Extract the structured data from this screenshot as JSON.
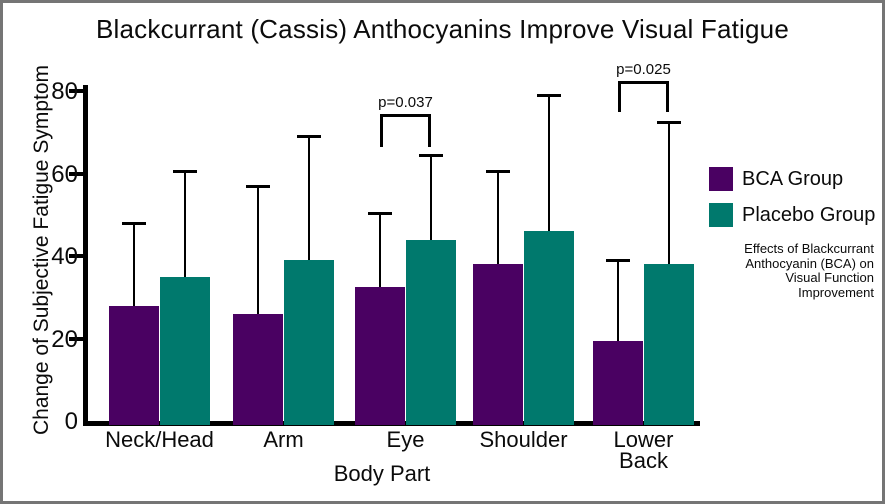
{
  "title": "Blackcurrant (Cassis) Anthocyanins Improve Visual Fatigue",
  "chart_data": {
    "type": "bar",
    "title": "Blackcurrant (Cassis) Anthocyanins Improve Visual Fatigue",
    "xlabel": "Body Part",
    "ylabel": "Change of Subjective Fatigue Symptom",
    "ylim": [
      0,
      80
    ],
    "yticks": [
      0,
      20,
      40,
      60,
      80
    ],
    "grid": false,
    "legend_position": "right-outside",
    "error_bars": "upper",
    "categories": [
      "Neck/Head",
      "Arm",
      "Eye",
      "Shoulder",
      "Lower Back"
    ],
    "category_display": [
      "Neck/Head",
      "Arm",
      "Eye",
      "Shoulder",
      "Lower\nBack"
    ],
    "series": [
      {
        "name": "BCA Group",
        "color": "#4A0162",
        "values": [
          28,
          26,
          32.5,
          38,
          19.5
        ],
        "error_plus": [
          20,
          31,
          18,
          22.5,
          19.5
        ]
      },
      {
        "name": "Placebo Group",
        "color": "#00796D",
        "values": [
          35,
          39,
          44,
          46,
          38
        ],
        "error_plus": [
          25.5,
          30,
          20.5,
          33,
          34.5
        ]
      }
    ],
    "annotations": [
      {
        "label": "p=0.037",
        "category": "Eye",
        "between": [
          "BCA Group",
          "Placebo Group"
        ]
      },
      {
        "label": "p=0.025",
        "category": "Lower Back",
        "between": [
          "BCA Group",
          "Placebo Group"
        ]
      }
    ]
  },
  "legend": {
    "items": [
      {
        "label": "BCA Group",
        "color": "#4A0162"
      },
      {
        "label": "Placebo Group",
        "color": "#00796D"
      }
    ]
  },
  "caption": {
    "lines": [
      "Effects of Blackcurrant",
      "Anthocyanin (BCA) on",
      "Visual Function",
      "Improvement"
    ]
  }
}
